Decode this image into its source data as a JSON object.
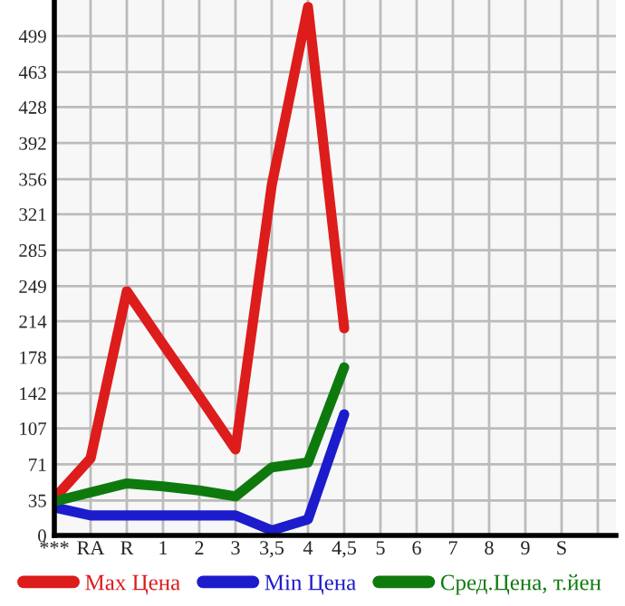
{
  "chart_data": {
    "type": "line",
    "categories": [
      "***",
      "RA",
      "R",
      "1",
      "2",
      "3",
      "3,5",
      "4",
      "4,5",
      "5",
      "6",
      "7",
      "8",
      "9",
      "S"
    ],
    "series": [
      {
        "name": "Max Цена",
        "color": "#dd1c1c",
        "values": [
          37,
          77,
          244,
          191,
          139,
          86,
          350,
          528,
          207,
          null,
          null,
          null,
          null,
          null,
          null
        ]
      },
      {
        "name": "Min Цена",
        "color": "#1c1ccc",
        "values": [
          28,
          20,
          20,
          20,
          20,
          20,
          5,
          16,
          121,
          null,
          null,
          null,
          null,
          null,
          null
        ]
      },
      {
        "name": "Сред.Цена, т.йен",
        "color": "#0e7a0e",
        "values": [
          34,
          43,
          52,
          49,
          45,
          39,
          68,
          73,
          168,
          null,
          null,
          null,
          null,
          null,
          null
        ]
      }
    ],
    "ylim": [
      0,
      535
    ],
    "yticks": [
      0,
      35,
      71,
      107,
      142,
      178,
      214,
      249,
      285,
      321,
      356,
      392,
      428,
      463,
      499
    ],
    "grid": true,
    "legend": "bottom",
    "marker": "none",
    "line_style": "solid"
  }
}
